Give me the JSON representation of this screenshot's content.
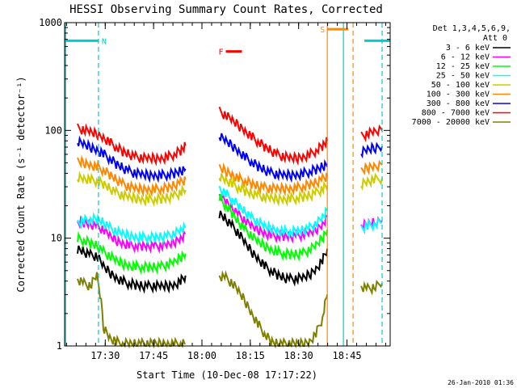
{
  "chart_data": {
    "type": "line",
    "title": "HESSI Observing Summary Count Rates, Corrected",
    "xlabel": "Start Time (10-Dec-08 17:17:22)",
    "ylabel": "Corrected Count Rate (s⁻¹ detector⁻¹)",
    "y_scale": "log",
    "ylim": [
      1,
      1000
    ],
    "xlim_min_after_start": [
      0,
      101
    ],
    "x_ticks": [
      {
        "t": 12.6,
        "label": "17:30"
      },
      {
        "t": 27.6,
        "label": "17:45"
      },
      {
        "t": 42.6,
        "label": "18:00"
      },
      {
        "t": 57.6,
        "label": "18:15"
      },
      {
        "t": 72.6,
        "label": "18:30"
      },
      {
        "t": 87.6,
        "label": "18:45"
      }
    ],
    "y_ticks": [
      {
        "v": 1,
        "label": "1"
      },
      {
        "v": 10,
        "label": "10"
      },
      {
        "v": 100,
        "label": "100"
      },
      {
        "v": 1000,
        "label": "1000"
      }
    ],
    "legend": {
      "header": [
        "Det 1,3,4,5,6,9,",
        "Att 0"
      ],
      "placement": "right"
    },
    "series": [
      {
        "name": "3 - 6 keV",
        "color": "#000000",
        "segments": [
          {
            "x": [
              4,
              6,
              8,
              10,
              12,
              14,
              16,
              18,
              20,
              22,
              24,
              26,
              28,
              30,
              32,
              34,
              36,
              37.5
            ],
            "y": [
              8,
              7.5,
              7,
              6.8,
              5.5,
              4.8,
              4.3,
              4.0,
              3.8,
              3.7,
              3.6,
              3.6,
              3.6,
              3.6,
              3.6,
              3.7,
              4.0,
              4.5
            ]
          },
          {
            "x": [
              48,
              50,
              52,
              54,
              56,
              58,
              60,
              62,
              64,
              66,
              68,
              70,
              72,
              74,
              76,
              78,
              80,
              81.5
            ],
            "y": [
              17,
              15,
              13,
              11,
              9,
              7.5,
              6.5,
              5.6,
              5.0,
              4.6,
              4.3,
              4.2,
              4.2,
              4.3,
              4.6,
              5.2,
              6.2,
              8
            ]
          }
        ]
      },
      {
        "name": "6 - 12 keV",
        "color": "#ff00ff",
        "segments": [
          {
            "x": [
              4,
              6,
              8,
              10,
              12,
              14,
              16,
              18,
              20,
              22,
              24,
              26,
              28,
              30,
              32,
              34,
              36,
              37.5
            ],
            "y": [
              14,
              14,
              13.5,
              13,
              12,
              10.5,
              9.5,
              9,
              8.7,
              8.5,
              8.5,
              8.5,
              8.5,
              8.5,
              8.7,
              9.2,
              10,
              11
            ]
          },
          {
            "x": [
              48,
              50,
              52,
              54,
              56,
              58,
              60,
              62,
              64,
              66,
              68,
              70,
              72,
              74,
              76,
              78,
              80,
              81.5
            ],
            "y": [
              25,
              22,
              19,
              16.5,
              14.5,
              13,
              12,
              11.2,
              10.8,
              10.5,
              10.5,
              10.5,
              10.6,
              10.8,
              11.2,
              12,
              13.5,
              16
            ]
          },
          {
            "x": [
              92,
              94,
              96,
              98.5
            ],
            "y": [
              13,
              13.5,
              14,
              14.5
            ]
          }
        ]
      },
      {
        "name": "12 - 25 keV",
        "color": "#00ff00",
        "segments": [
          {
            "x": [
              4,
              6,
              8,
              10,
              12,
              14,
              16,
              18,
              20,
              22,
              24,
              26,
              28,
              30,
              32,
              34,
              36,
              37.5
            ],
            "y": [
              10,
              9.5,
              9,
              8.5,
              7.5,
              6.8,
              6.2,
              5.8,
              5.6,
              5.5,
              5.4,
              5.4,
              5.4,
              5.5,
              5.7,
              6.0,
              6.6,
              7.2
            ]
          },
          {
            "x": [
              48,
              50,
              52,
              54,
              56,
              58,
              60,
              62,
              64,
              66,
              68,
              70,
              72,
              74,
              76,
              78,
              80,
              81.5
            ],
            "y": [
              24,
              20,
              17,
              14,
              12,
              10.5,
              9.3,
              8.5,
              7.9,
              7.5,
              7.2,
              7.1,
              7.1,
              7.3,
              7.8,
              8.6,
              10,
              12
            ]
          }
        ]
      },
      {
        "name": "25 - 50 keV",
        "color": "#00ffff",
        "segments": [
          {
            "x": [
              4,
              6,
              8,
              10,
              12,
              14,
              16,
              18,
              20,
              22,
              24,
              26,
              28,
              30,
              32,
              34,
              36,
              37.5
            ],
            "y": [
              14,
              14.5,
              15,
              15,
              14,
              12.5,
              11.5,
              11,
              10.5,
              10.3,
              10.2,
              10.2,
              10.2,
              10.3,
              10.5,
              11,
              11.8,
              12.5
            ]
          },
          {
            "x": [
              48,
              50,
              52,
              54,
              56,
              58,
              60,
              62,
              64,
              66,
              68,
              70,
              72,
              74,
              76,
              78,
              80,
              81.5
            ],
            "y": [
              29,
              26,
              23,
              20,
              17.5,
              15.5,
              14,
              13,
              12.3,
              11.8,
              11.6,
              11.5,
              11.6,
              11.9,
              12.5,
              13.5,
              15.5,
              18
            ]
          },
          {
            "x": [
              92,
              94,
              96,
              98.5
            ],
            "y": [
              12.5,
              13,
              13.5,
              14
            ]
          }
        ]
      },
      {
        "name": "50 - 100 keV",
        "color": "#cccc00",
        "segments": [
          {
            "x": [
              4,
              6,
              8,
              10,
              12,
              14,
              16,
              18,
              20,
              22,
              24,
              26,
              28,
              30,
              32,
              34,
              36,
              37.5
            ],
            "y": [
              37,
              36,
              35,
              34,
              32,
              29,
              26.5,
              25,
              24,
              23.5,
              23,
              23,
              23,
              23.2,
              23.8,
              24.8,
              26.5,
              28
            ]
          },
          {
            "x": [
              48,
              50,
              52,
              54,
              56,
              58,
              60,
              62,
              64,
              66,
              68,
              70,
              72,
              74,
              76,
              78,
              80,
              81.5
            ],
            "y": [
              38,
              35,
              32,
              29.5,
              27.5,
              26,
              25,
              24,
              23.5,
              23.2,
              23.2,
              23.3,
              23.6,
              24.2,
              25,
              26.5,
              28.5,
              31
            ]
          },
          {
            "x": [
              92,
              94,
              96,
              98.5
            ],
            "y": [
              32,
              34,
              35,
              36
            ]
          }
        ]
      },
      {
        "name": "100 - 300 keV",
        "color": "#ff8800",
        "segments": [
          {
            "x": [
              4,
              6,
              8,
              10,
              12,
              14,
              16,
              18,
              20,
              22,
              24,
              26,
              28,
              30,
              32,
              34,
              36,
              37.5
            ],
            "y": [
              52,
              50,
              48,
              46,
              43,
              39,
              35,
              32,
              30,
              29,
              28.5,
              28.5,
              28.5,
              28.8,
              29.5,
              31,
              33,
              35
            ]
          },
          {
            "x": [
              48,
              50,
              52,
              54,
              56,
              58,
              60,
              62,
              64,
              66,
              68,
              70,
              72,
              74,
              76,
              78,
              80,
              81.5
            ],
            "y": [
              45,
              42,
              39,
              36,
              34,
              32,
              30.5,
              29.5,
              29,
              28.8,
              28.8,
              29,
              29.5,
              30.3,
              31.5,
              33,
              35.5,
              38
            ]
          },
          {
            "x": [
              92,
              94,
              96,
              98.5
            ],
            "y": [
              42,
              45,
              47,
              48
            ]
          }
        ]
      },
      {
        "name": "300 - 800 keV",
        "color": "#0000ff",
        "segments": [
          {
            "x": [
              4,
              6,
              8,
              10,
              12,
              14,
              16,
              18,
              20,
              22,
              24,
              26,
              28,
              30,
              32,
              34,
              36,
              37.5
            ],
            "y": [
              78,
              74,
              70,
              66,
              61,
              55,
              49,
              45,
              42,
              40,
              39,
              38.5,
              38.5,
              38.5,
              39,
              40,
              42,
              44
            ]
          },
          {
            "x": [
              48,
              50,
              52,
              54,
              56,
              58,
              60,
              62,
              64,
              66,
              68,
              70,
              72,
              74,
              76,
              78,
              80,
              81.5
            ],
            "y": [
              88,
              80,
              72,
              64,
              57,
              51,
              46.5,
              43,
              40.5,
              39,
              38.5,
              38.5,
              39,
              40,
              41.5,
              43.5,
              46,
              49
            ]
          },
          {
            "x": [
              92,
              94,
              96,
              98.5
            ],
            "y": [
              62,
              66,
              69,
              71
            ]
          }
        ]
      },
      {
        "name": "800 - 7000 keV",
        "color": "#ff0000",
        "segments": [
          {
            "x": [
              4,
              6,
              8,
              10,
              12,
              14,
              16,
              18,
              20,
              22,
              24,
              26,
              28,
              30,
              32,
              34,
              36,
              37.5
            ],
            "y": [
              105,
              101,
              97,
              92,
              86,
              78,
              70,
              64,
              60,
              57,
              55.5,
              55,
              55,
              55.5,
              57,
              60,
              65,
              72
            ]
          },
          {
            "x": [
              48,
              50,
              52,
              54,
              56,
              58,
              60,
              62,
              64,
              66,
              68,
              70,
              72,
              74,
              76,
              78,
              80,
              81.5
            ],
            "y": [
              150,
              138,
              124,
              111,
              99,
              88,
              79,
              71,
              65,
              60,
              57,
              55.5,
              55.5,
              57,
              60,
              65,
              72,
              80
            ]
          },
          {
            "x": [
              92,
              94,
              96,
              98.5
            ],
            "y": [
              88,
              93,
              97,
              100
            ]
          }
        ]
      },
      {
        "name": "7000 - 20000 keV",
        "color": "#808000",
        "segments": [
          {
            "x": [
              4,
              6,
              8,
              10,
              12,
              14,
              16,
              18,
              20,
              22,
              24,
              26,
              28,
              30,
              32,
              34,
              36,
              37.5
            ],
            "y": [
              4.2,
              3.8,
              3.6,
              4.5,
              1.5,
              1.2,
              1.1,
              1.05,
              1.05,
              1.05,
              1.05,
              1.05,
              1.05,
              1.05,
              1.05,
              1.05,
              1.05,
              1.05
            ]
          },
          {
            "x": [
              48,
              50,
              52,
              54,
              56,
              58,
              60,
              62,
              64,
              66,
              68,
              70,
              72,
              74,
              76,
              78,
              80,
              81.5
            ],
            "y": [
              4.5,
              4.3,
              3.8,
              3.2,
              2.6,
              2.0,
              1.6,
              1.3,
              1.1,
              1.05,
              1.05,
              1.05,
              1.05,
              1.05,
              1.1,
              1.3,
              1.8,
              3
            ]
          },
          {
            "x": [
              92,
              94,
              96,
              98.5
            ],
            "y": [
              3.6,
              3.4,
              3.5,
              3.8
            ]
          }
        ]
      }
    ],
    "annotations": [
      {
        "label": "N",
        "color": "#00cccc",
        "x_start": 0,
        "x_end": 10.5,
        "y": 680
      },
      {
        "label": "F",
        "color": "#ff0000",
        "x_start": 50,
        "x_end": 55,
        "y": 540
      },
      {
        "label": "S",
        "color": "#ff8800",
        "x_start": 81.5,
        "x_end": 88,
        "y": 870
      },
      {
        "label": "",
        "color": "#00cccc",
        "x_start": 93,
        "x_end": 101,
        "y": 680
      }
    ],
    "markers": [
      {
        "t": 0.3,
        "color": "#00cccc",
        "style": "solid"
      },
      {
        "t": 10.5,
        "color": "#00cccc",
        "style": "dashed"
      },
      {
        "t": 81.5,
        "color": "#ff8800",
        "style": "solid"
      },
      {
        "t": 86.5,
        "color": "#00cccc",
        "style": "solid"
      },
      {
        "t": 89.5,
        "color": "#ff8800",
        "style": "dashed"
      },
      {
        "t": 98.5,
        "color": "#00cccc",
        "style": "dashed"
      }
    ]
  },
  "footer": {
    "date": "26-Jan-2010 01:36"
  }
}
